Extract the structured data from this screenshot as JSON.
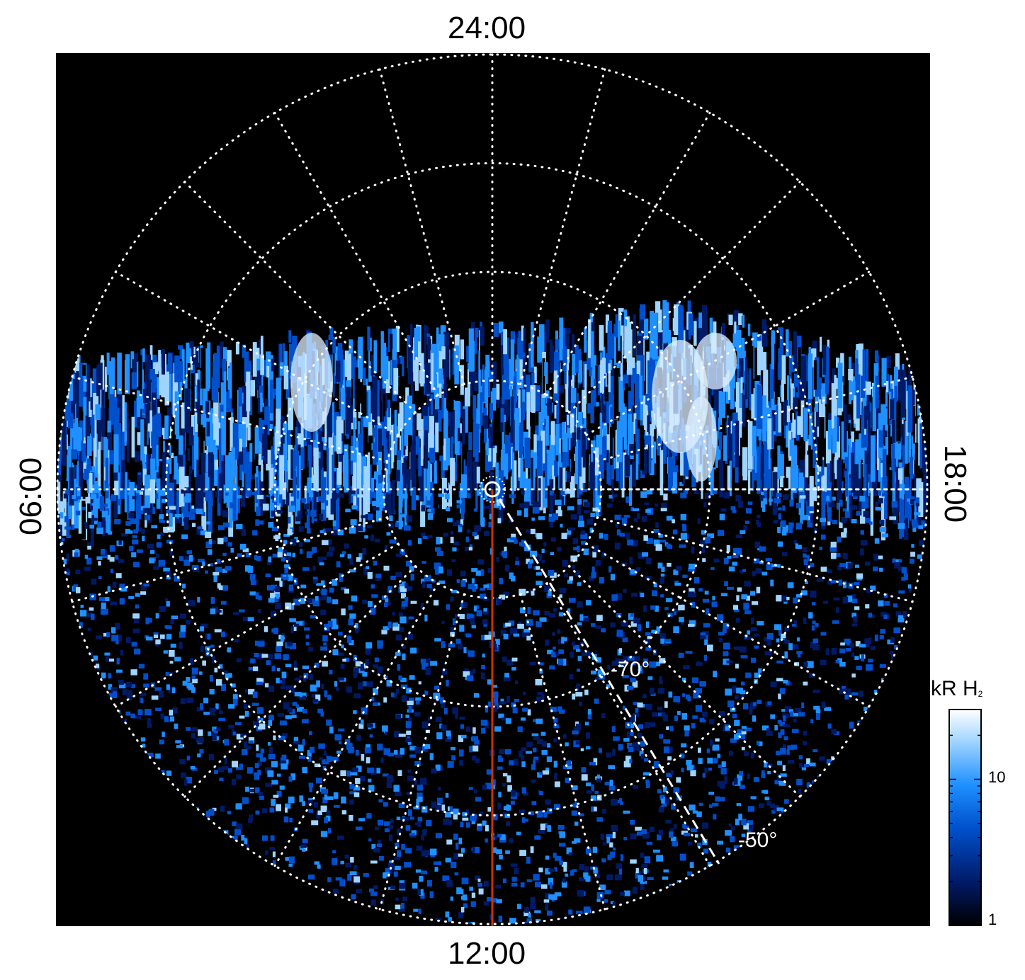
{
  "local_time_labels": {
    "top": "24:00",
    "bottom": "12:00",
    "left": "06:00",
    "right": "18:00"
  },
  "latitude_labels": {
    "inner": "-70°",
    "outer": "-50°"
  },
  "colorbar": {
    "title_main": "kR H",
    "title_sub": "2",
    "ticks": [
      "10",
      "1"
    ],
    "colors": [
      "#000000",
      "#001a66",
      "#0050cc",
      "#1e90ff",
      "#9fd4ff",
      "#ffffff"
    ],
    "scale": "log",
    "range": [
      1,
      30
    ]
  },
  "chart_data": {
    "type": "heatmap",
    "projection": "polar (south pole, local time)",
    "local_time_hours": [
      0,
      6,
      12,
      18
    ],
    "latitude_circles": [
      -80,
      -70,
      -60,
      -50
    ],
    "reference_line_color": "#cc3300",
    "grid": "dotted white",
    "background": "#000000"
  }
}
